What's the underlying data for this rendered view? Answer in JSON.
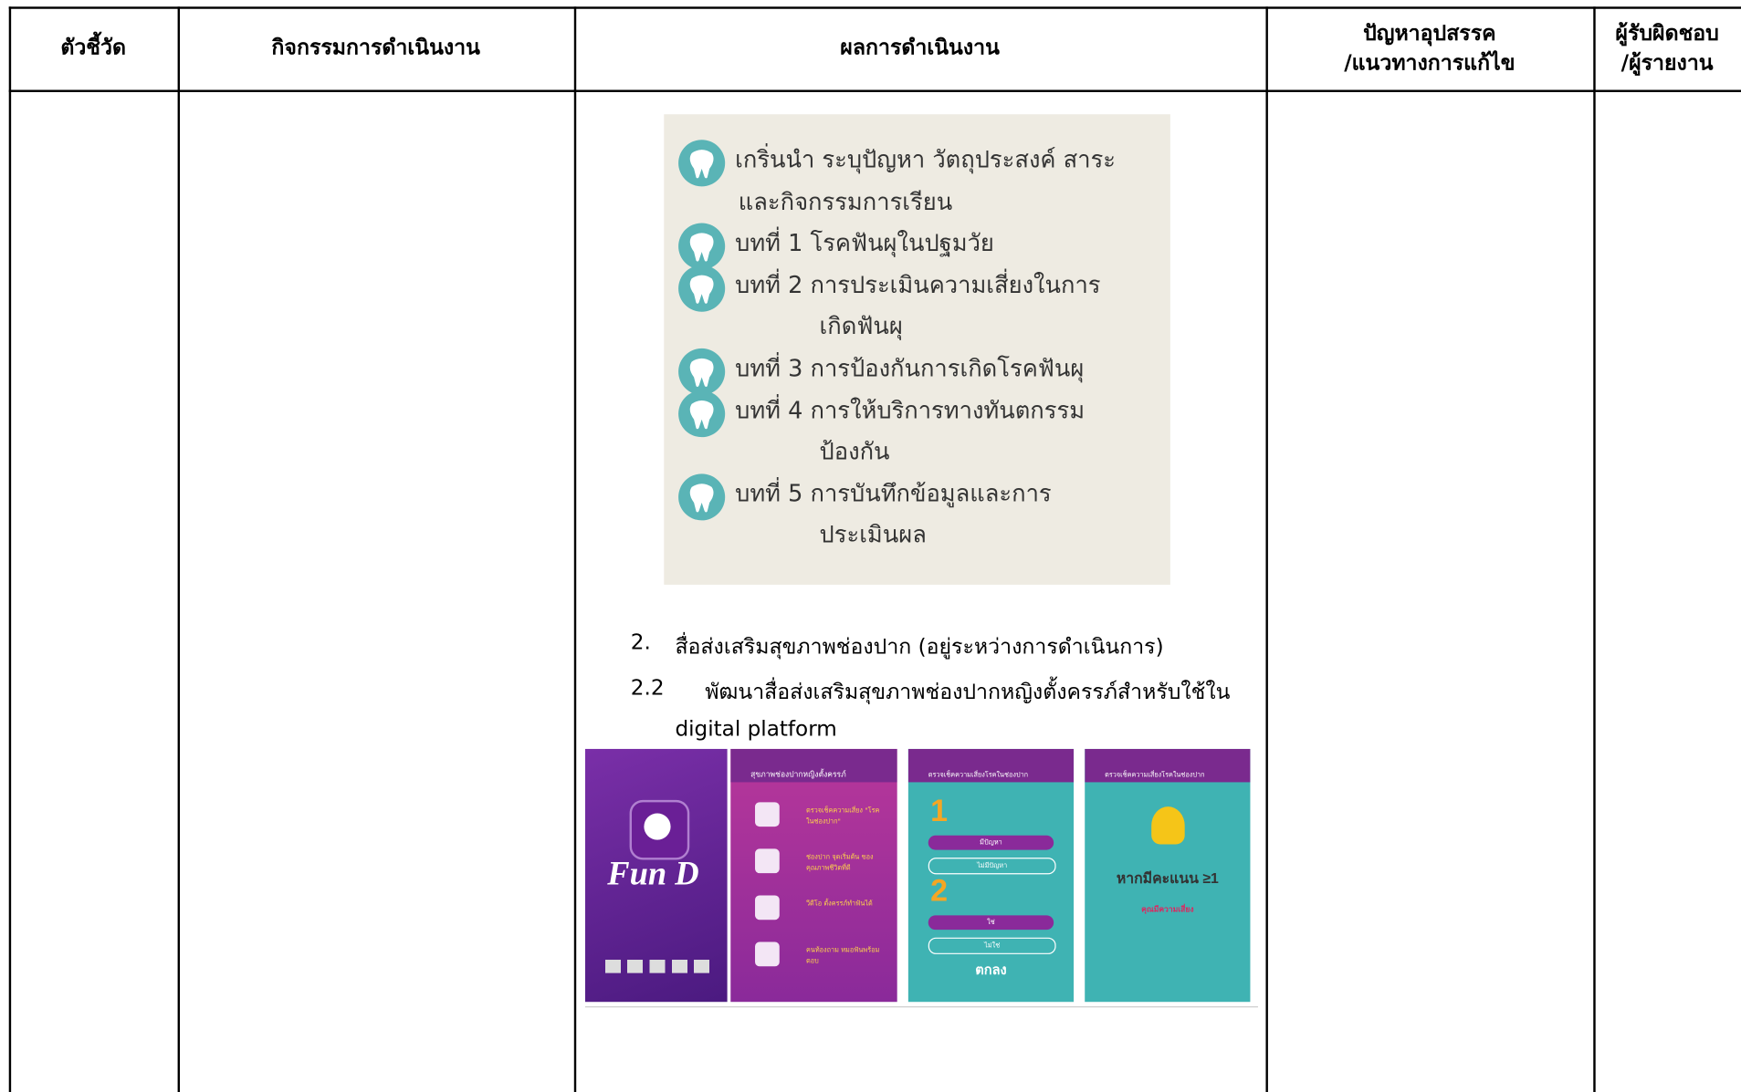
{
  "table": {
    "headers": [
      "ตัวชี้วัด",
      "กิจกรรมการดำเนินงาน",
      "ผลการดำเนินงาน",
      [
        "ปัญหาอุปสรรค",
        "/แนวทางการแก้ไข"
      ],
      [
        "ผู้รับผิดชอบ",
        "/ผู้รายงาน"
      ]
    ]
  },
  "results": {
    "lessons": [
      [
        "เกริ่นนำ ระบุปัญหา วัตถุประสงค์ สาระ",
        "และกิจกรรมการเรียน"
      ],
      [
        "บทที่ 1 โรคฟันผุในปฐมวัย"
      ],
      [
        "บทที่ 2 การประเมินความเสี่ยงในการ",
        "เกิดฟันผุ"
      ],
      [
        "บทที่ 3 การป้องกันการเกิดโรคฟันผุ"
      ],
      [
        "บทที่ 4 การให้บริการทางทันตกรรม",
        "ป้องกัน"
      ],
      [
        "บทที่ 5 การบันทึกข้อมูลและการ",
        "ประเมินผล"
      ]
    ],
    "items": [
      {
        "number": "2.",
        "lines": [
          "สื่อส่งเสริมสุขภาพช่องปาก (อยู่ระหว่างการดำเนินการ)"
        ]
      },
      {
        "number": "2.2",
        "lines": [
          "พัฒนาสื่อส่งเสริมสุขภาพช่องปากหญิงตั้งครรภ์สำหรับใช้ใน",
          "digital platform"
        ]
      }
    ],
    "app_screens": {
      "splash": "Fun D",
      "menu": {
        "header": "สุขภาพช่องปากหญิงตั้งครรภ์",
        "entries": [
          "ตรวจเช็คความเสี่ยง \"โรคในช่องปาก\"",
          "ช่องปาก จุดเริ่มต้น ของคุณภาพชีวิตที่ดี",
          "วีดีโอ ตั้งครรภ์ทำฟันได้",
          "คนท้องถาม หมอฟันพร้อมตอบ"
        ]
      },
      "quiz": {
        "header": "ตรวจเช็คความเสี่ยงโรคในช่องปาก",
        "numbers": [
          "1",
          "2"
        ],
        "buttons": [
          "มีปัญหา",
          "ไม่มีปัญหา",
          "ใช่",
          "ไม่ใช่"
        ],
        "ok": "ตกลง"
      },
      "result": {
        "header": "ตรวจเช็คความเสี่ยงโรคในช่องปาก",
        "score": "หากมีคะแนน ≥1",
        "warning": "คุณมีความเสี่ยง"
      }
    }
  }
}
